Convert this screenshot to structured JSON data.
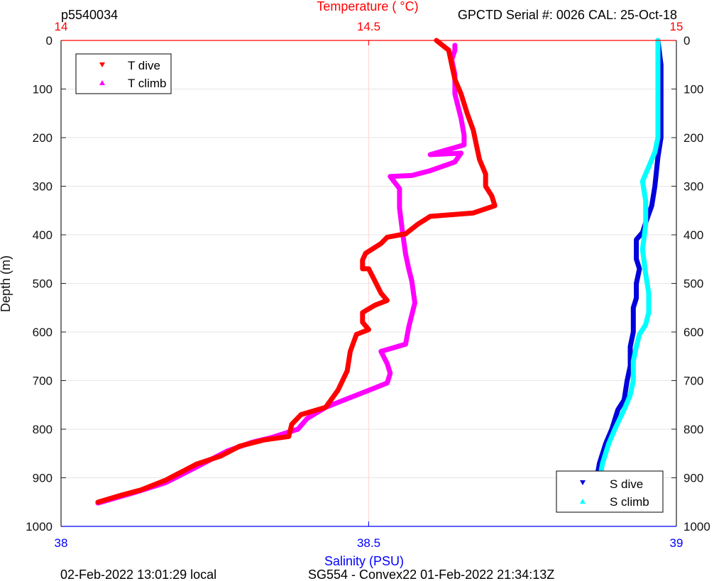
{
  "header": {
    "left": "p5540034",
    "right": "GPCTD Serial #: 0026 CAL: 25-Oct-18",
    "top_axis_label": "Temperature (    °C)"
  },
  "footer": {
    "left": "02-Feb-2022 13:01:29 local",
    "center": "SG554 - Convex22 01-Feb-2022 21:34:13Z"
  },
  "legend_temp": {
    "dive": "T dive",
    "climb": "T climb"
  },
  "legend_sal": {
    "dive": "S dive",
    "climb": "S climb"
  },
  "colors": {
    "t_dive": "#ff0000",
    "t_climb": "#ff00ff",
    "s_dive": "#0000dd",
    "s_climb": "#00ffff",
    "top_axis": "#ff0000",
    "bottom_axis": "#0000ff"
  },
  "chart_data": {
    "type": "line",
    "grid": true,
    "ylabel": "Depth (m)",
    "ylim": [
      0,
      1000
    ],
    "y_reversed": true,
    "yticks": [
      "0",
      "100",
      "200",
      "300",
      "400",
      "500",
      "600",
      "700",
      "800",
      "900",
      "1000"
    ],
    "x_top": {
      "label": "Temperature (    °C)",
      "lim": [
        14,
        15
      ],
      "ticks": [
        "14",
        "14.5",
        "15"
      ]
    },
    "x_bottom": {
      "label": "Salinity (PSU)",
      "lim": [
        38,
        39
      ],
      "ticks": [
        "38",
        "38.5",
        "39"
      ]
    },
    "legend_positions": {
      "temperature": "top-left",
      "salinity": "bottom-right"
    },
    "series": [
      {
        "name": "T dive",
        "axis": "temperature",
        "points": [
          [
            14.61,
            0
          ],
          [
            14.63,
            20
          ],
          [
            14.635,
            50
          ],
          [
            14.64,
            80
          ],
          [
            14.65,
            110
          ],
          [
            14.66,
            150
          ],
          [
            14.67,
            185
          ],
          [
            14.675,
            215
          ],
          [
            14.68,
            245
          ],
          [
            14.69,
            275
          ],
          [
            14.69,
            300
          ],
          [
            14.7,
            320
          ],
          [
            14.705,
            340
          ],
          [
            14.67,
            355
          ],
          [
            14.6,
            362
          ],
          [
            14.58,
            378
          ],
          [
            14.56,
            398
          ],
          [
            14.53,
            405
          ],
          [
            14.52,
            418
          ],
          [
            14.495,
            438
          ],
          [
            14.49,
            452
          ],
          [
            14.49,
            470
          ],
          [
            14.5,
            470
          ],
          [
            14.51,
            495
          ],
          [
            14.52,
            520
          ],
          [
            14.53,
            535
          ],
          [
            14.51,
            545
          ],
          [
            14.49,
            560
          ],
          [
            14.49,
            580
          ],
          [
            14.5,
            595
          ],
          [
            14.48,
            605
          ],
          [
            14.47,
            640
          ],
          [
            14.465,
            680
          ],
          [
            14.45,
            720
          ],
          [
            14.43,
            755
          ],
          [
            14.39,
            770
          ],
          [
            14.375,
            790
          ],
          [
            14.37,
            815
          ],
          [
            14.33,
            822
          ],
          [
            14.29,
            835
          ],
          [
            14.26,
            855
          ],
          [
            14.22,
            872
          ],
          [
            14.17,
            905
          ],
          [
            14.13,
            925
          ],
          [
            14.1,
            935
          ],
          [
            14.06,
            950
          ]
        ]
      },
      {
        "name": "T climb",
        "axis": "temperature",
        "points": [
          [
            14.06,
            952
          ],
          [
            14.12,
            930
          ],
          [
            14.17,
            910
          ],
          [
            14.22,
            878
          ],
          [
            14.27,
            845
          ],
          [
            14.31,
            827
          ],
          [
            14.34,
            818
          ],
          [
            14.385,
            800
          ],
          [
            14.4,
            778
          ],
          [
            14.43,
            755
          ],
          [
            14.46,
            740
          ],
          [
            14.5,
            720
          ],
          [
            14.53,
            705
          ],
          [
            14.535,
            685
          ],
          [
            14.53,
            665
          ],
          [
            14.52,
            640
          ],
          [
            14.56,
            625
          ],
          [
            14.565,
            590
          ],
          [
            14.575,
            540
          ],
          [
            14.57,
            495
          ],
          [
            14.565,
            470
          ],
          [
            14.56,
            440
          ],
          [
            14.555,
            395
          ],
          [
            14.55,
            345
          ],
          [
            14.55,
            305
          ],
          [
            14.535,
            280
          ],
          [
            14.57,
            278
          ],
          [
            14.6,
            268
          ],
          [
            14.64,
            250
          ],
          [
            14.65,
            232
          ],
          [
            14.6,
            235
          ],
          [
            14.655,
            215
          ],
          [
            14.655,
            195
          ],
          [
            14.65,
            160
          ],
          [
            14.64,
            110
          ],
          [
            14.64,
            70
          ],
          [
            14.635,
            40
          ],
          [
            14.64,
            20
          ],
          [
            14.64,
            10
          ]
        ]
      },
      {
        "name": "S dive",
        "axis": "salinity",
        "points": [
          [
            38.97,
            0
          ],
          [
            38.975,
            50
          ],
          [
            38.975,
            100
          ],
          [
            38.975,
            150
          ],
          [
            38.975,
            200
          ],
          [
            38.97,
            240
          ],
          [
            38.965,
            300
          ],
          [
            38.96,
            340
          ],
          [
            38.95,
            375
          ],
          [
            38.945,
            395
          ],
          [
            38.935,
            410
          ],
          [
            38.935,
            450
          ],
          [
            38.94,
            470
          ],
          [
            38.935,
            500
          ],
          [
            38.935,
            530
          ],
          [
            38.93,
            550
          ],
          [
            38.93,
            570
          ],
          [
            38.93,
            600
          ],
          [
            38.925,
            630
          ],
          [
            38.925,
            670
          ],
          [
            38.92,
            700
          ],
          [
            38.915,
            740
          ],
          [
            38.905,
            760
          ],
          [
            38.895,
            800
          ],
          [
            38.885,
            830
          ],
          [
            38.875,
            870
          ],
          [
            38.87,
            905
          ],
          [
            38.86,
            930
          ],
          [
            38.855,
            950
          ]
        ]
      },
      {
        "name": "S climb",
        "axis": "salinity",
        "points": [
          [
            38.855,
            953
          ],
          [
            38.865,
            930
          ],
          [
            38.875,
            905
          ],
          [
            38.88,
            870
          ],
          [
            38.89,
            830
          ],
          [
            38.9,
            800
          ],
          [
            38.915,
            760
          ],
          [
            38.925,
            730
          ],
          [
            38.93,
            700
          ],
          [
            38.93,
            660
          ],
          [
            38.935,
            630
          ],
          [
            38.94,
            605
          ],
          [
            38.95,
            585
          ],
          [
            38.955,
            560
          ],
          [
            38.955,
            520
          ],
          [
            38.95,
            480
          ],
          [
            38.945,
            430
          ],
          [
            38.95,
            380
          ],
          [
            38.95,
            330
          ],
          [
            38.945,
            290
          ],
          [
            38.955,
            260
          ],
          [
            38.965,
            230
          ],
          [
            38.97,
            200
          ],
          [
            38.97,
            150
          ],
          [
            38.97,
            100
          ],
          [
            38.97,
            50
          ],
          [
            38.97,
            0
          ]
        ]
      }
    ]
  }
}
